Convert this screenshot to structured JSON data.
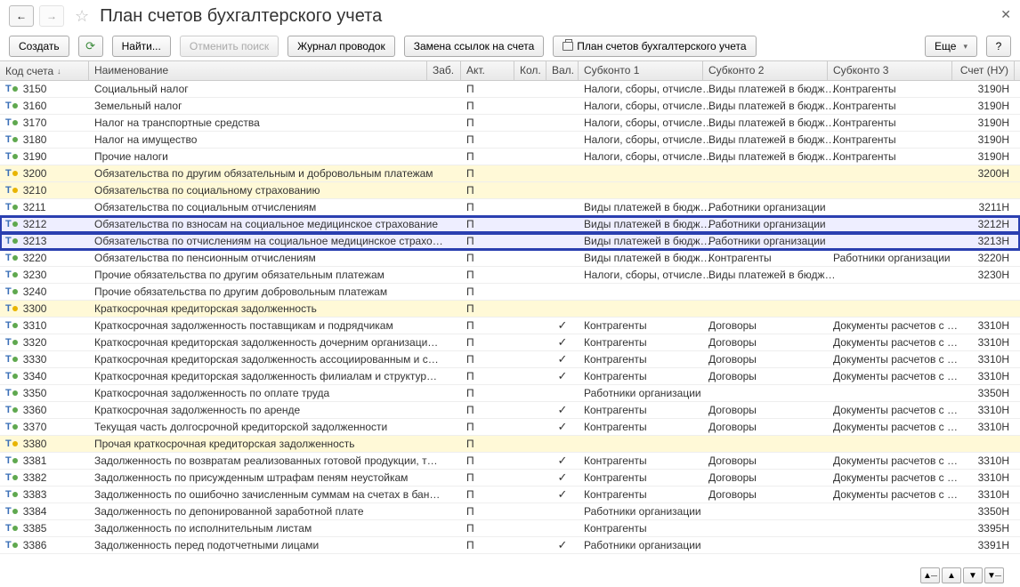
{
  "title": "План счетов бухгалтерского учета",
  "toolbar": {
    "create": "Создать",
    "find": "Найти...",
    "cancel_search": "Отменить поиск",
    "journal": "Журнал проводок",
    "replace": "Замена ссылок на счета",
    "print_plan": "План счетов бухгалтерского учета",
    "more": "Еще"
  },
  "columns": {
    "code": "Код счета",
    "name": "Наименование",
    "zab": "Заб.",
    "akt": "Акт.",
    "kol": "Кол.",
    "val": "Вал.",
    "s1": "Субконто 1",
    "s2": "Субконто 2",
    "s3": "Субконто 3",
    "nu": "Счет (НУ)"
  },
  "rows": [
    {
      "dot": "g",
      "code": "3150",
      "name": "Социальный налог",
      "akt": "П",
      "s1": "Налоги, сборы, отчисле…",
      "s2": "Виды платежей в бюдж…",
      "s3": "Контрагенты",
      "nu": "3190H"
    },
    {
      "dot": "g",
      "code": "3160",
      "name": "Земельный налог",
      "akt": "П",
      "s1": "Налоги, сборы, отчисле…",
      "s2": "Виды платежей в бюдж…",
      "s3": "Контрагенты",
      "nu": "3190H"
    },
    {
      "dot": "g",
      "code": "3170",
      "name": "Налог на транспортные средства",
      "akt": "П",
      "s1": "Налоги, сборы, отчисле…",
      "s2": "Виды платежей в бюдж…",
      "s3": "Контрагенты",
      "nu": "3190H"
    },
    {
      "dot": "g",
      "code": "3180",
      "name": "Налог на имущество",
      "akt": "П",
      "s1": "Налоги, сборы, отчисле…",
      "s2": "Виды платежей в бюдж…",
      "s3": "Контрагенты",
      "nu": "3190H"
    },
    {
      "dot": "g",
      "code": "3190",
      "name": "Прочие налоги",
      "akt": "П",
      "s1": "Налоги, сборы, отчисле…",
      "s2": "Виды платежей в бюдж…",
      "s3": "Контрагенты",
      "nu": "3190H"
    },
    {
      "dot": "y",
      "code": "3200",
      "name": "Обязательства по другим обязательным и добровольным платежам",
      "akt": "П",
      "nu": "3200H",
      "yellow": true
    },
    {
      "dot": "y",
      "code": "3210",
      "name": "Обязательства по социальному страхованию",
      "akt": "П",
      "yellow": true
    },
    {
      "dot": "g",
      "code": "3211",
      "name": "Обязательства по социальным отчислениям",
      "akt": "П",
      "s1": "Виды платежей в бюдж…",
      "s2": "Работники организации",
      "nu": "3211H"
    },
    {
      "dot": "g",
      "code": "3212",
      "name": "Обязательства по взносам на социальное медицинское страхование",
      "akt": "П",
      "s1": "Виды платежей в бюдж…",
      "s2": "Работники организации",
      "nu": "3212H",
      "blue": true
    },
    {
      "dot": "g",
      "code": "3213",
      "name": "Обязательства по отчислениям на социальное медицинское страхо…",
      "akt": "П",
      "s1": "Виды платежей в бюдж…",
      "s2": "Работники организации",
      "nu": "3213H",
      "blue": true
    },
    {
      "dot": "g",
      "code": "3220",
      "name": "Обязательства по пенсионным отчислениям",
      "akt": "П",
      "s1": "Виды платежей в бюдж…",
      "s2": "Контрагенты",
      "s3": "Работники организации",
      "nu": "3220H"
    },
    {
      "dot": "g",
      "code": "3230",
      "name": "Прочие обязательства по другим обязательным платежам",
      "akt": "П",
      "s1": "Налоги, сборы, отчисле…",
      "s2": "Виды платежей в бюдж…",
      "nu": "3230H"
    },
    {
      "dot": "g",
      "code": "3240",
      "name": "Прочие обязательства по другим добровольным платежам",
      "akt": "П"
    },
    {
      "dot": "y",
      "code": "3300",
      "name": "Краткосрочная кредиторская задолженность",
      "akt": "П",
      "yellow": true
    },
    {
      "dot": "g",
      "code": "3310",
      "name": "Краткосрочная задолженность поставщикам и подрядчикам",
      "akt": "П",
      "val": "✓",
      "s1": "Контрагенты",
      "s2": "Договоры",
      "s3": "Документы расчетов с …",
      "nu": "3310H"
    },
    {
      "dot": "g",
      "code": "3320",
      "name": "Краткосрочная кредиторская задолженность дочерним организаци…",
      "akt": "П",
      "val": "✓",
      "s1": "Контрагенты",
      "s2": "Договоры",
      "s3": "Документы расчетов с …",
      "nu": "3310H"
    },
    {
      "dot": "g",
      "code": "3330",
      "name": "Краткосрочная кредиторская задолженность ассоциированным и с…",
      "akt": "П",
      "val": "✓",
      "s1": "Контрагенты",
      "s2": "Договоры",
      "s3": "Документы расчетов с …",
      "nu": "3310H"
    },
    {
      "dot": "g",
      "code": "3340",
      "name": "Краткосрочная кредиторская задолженность филиалам и структур…",
      "akt": "П",
      "val": "✓",
      "s1": "Контрагенты",
      "s2": "Договоры",
      "s3": "Документы расчетов с …",
      "nu": "3310H"
    },
    {
      "dot": "g",
      "code": "3350",
      "name": "Краткосрочная задолженность по оплате труда",
      "akt": "П",
      "s1": "Работники организации",
      "nu": "3350H"
    },
    {
      "dot": "g",
      "code": "3360",
      "name": "Краткосрочная задолженность по аренде",
      "akt": "П",
      "val": "✓",
      "s1": "Контрагенты",
      "s2": "Договоры",
      "s3": "Документы расчетов с …",
      "nu": "3310H"
    },
    {
      "dot": "g",
      "code": "3370",
      "name": "Текущая часть долгосрочной кредиторской задолженности",
      "akt": "П",
      "val": "✓",
      "s1": "Контрагенты",
      "s2": "Договоры",
      "s3": "Документы расчетов с …",
      "nu": "3310H"
    },
    {
      "dot": "y",
      "code": "3380",
      "name": "Прочая краткосрочная кредиторская задолженность",
      "akt": "П",
      "yellow": true
    },
    {
      "dot": "g",
      "code": "3381",
      "name": "Задолженность по возвратам реализованных готовой продукции, т…",
      "akt": "П",
      "val": "✓",
      "s1": "Контрагенты",
      "s2": "Договоры",
      "s3": "Документы расчетов с …",
      "nu": "3310H"
    },
    {
      "dot": "g",
      "code": "3382",
      "name": "Задолженность по присужденным штрафам пеням неустойкам",
      "akt": "П",
      "val": "✓",
      "s1": "Контрагенты",
      "s2": "Договоры",
      "s3": "Документы расчетов с …",
      "nu": "3310H"
    },
    {
      "dot": "g",
      "code": "3383",
      "name": "Задолженность по ошибочно зачисленным суммам на счетах в бан…",
      "akt": "П",
      "val": "✓",
      "s1": "Контрагенты",
      "s2": "Договоры",
      "s3": "Документы расчетов с …",
      "nu": "3310H"
    },
    {
      "dot": "g",
      "code": "3384",
      "name": "Задолженность по депонированной заработной плате",
      "akt": "П",
      "s1": "Работники организации",
      "nu": "3350H"
    },
    {
      "dot": "g",
      "code": "3385",
      "name": "Задолженность по исполнительным листам",
      "akt": "П",
      "s1": "Контрагенты",
      "nu": "3395H"
    },
    {
      "dot": "g",
      "code": "3386",
      "name": "Задолженность перед подотчетными лицами",
      "akt": "П",
      "val": "✓",
      "s1": "Работники организации",
      "nu": "3391H"
    }
  ]
}
